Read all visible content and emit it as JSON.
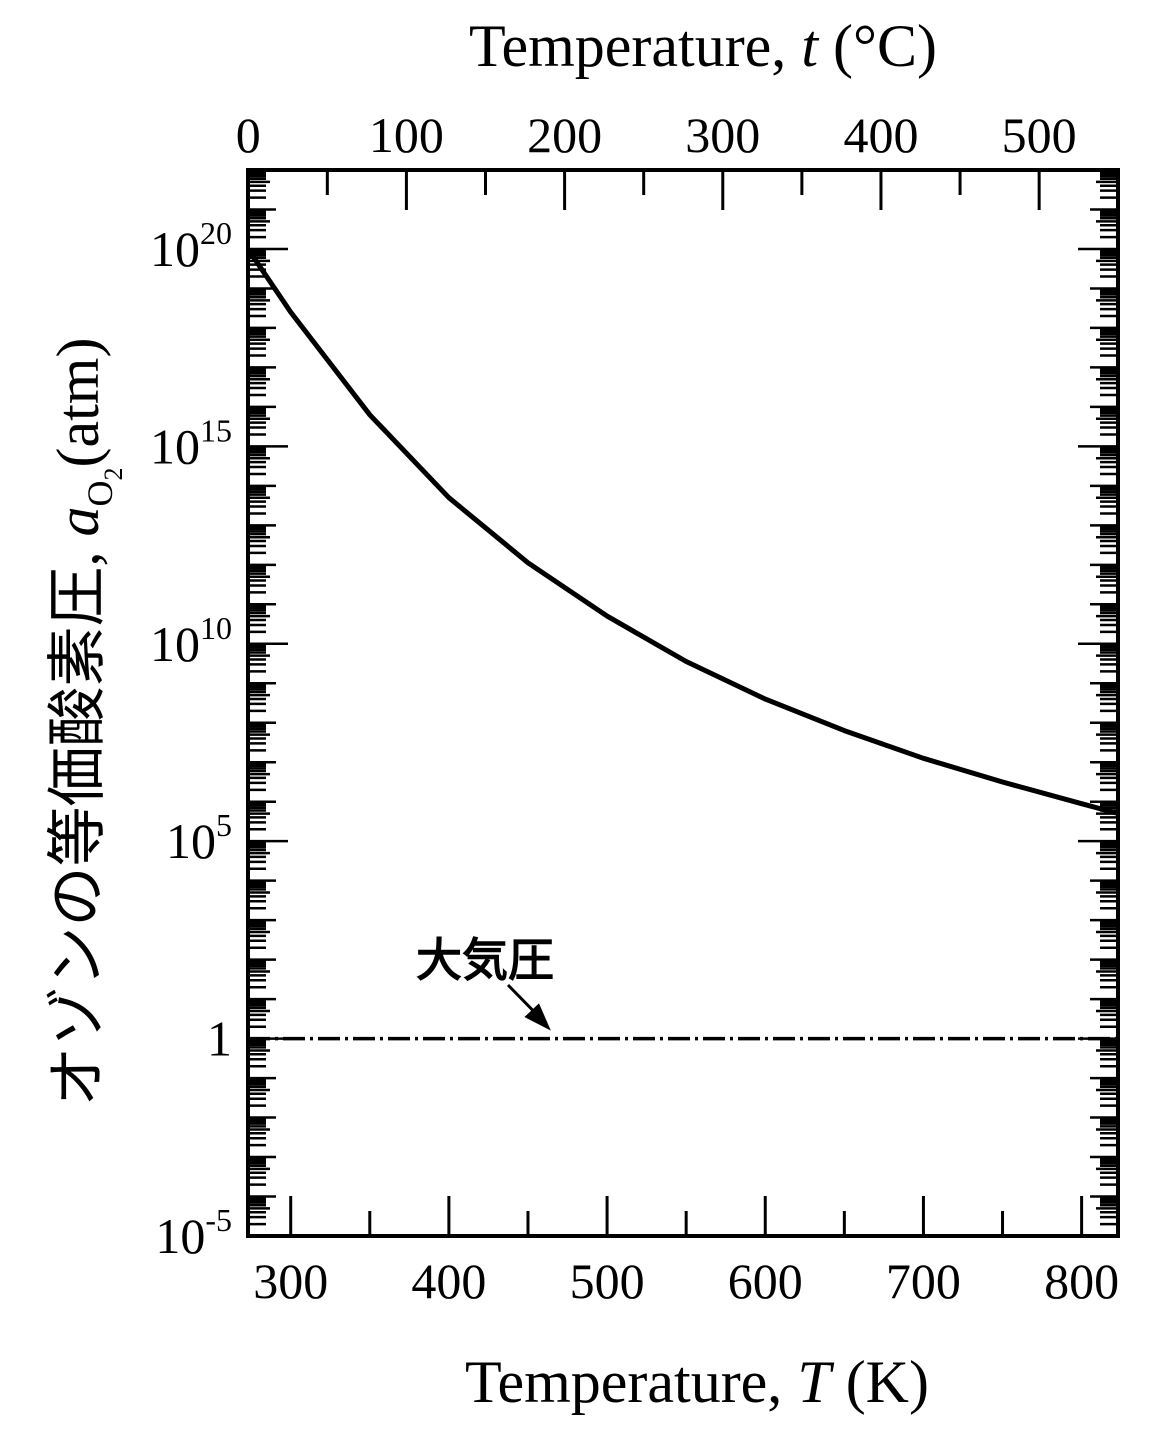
{
  "chart_data": {
    "type": "line",
    "xlabel_bottom": {
      "pre": "Temperature, ",
      "var": "T",
      "post": " (K)"
    },
    "xlabel_top": {
      "pre": "Temperature, ",
      "var": "t",
      "post": " (°C)"
    },
    "ylabel": {
      "pre": "オゾンの等価酸素圧, ",
      "var": "a",
      "sub": "O",
      "subsub": "2",
      "post": "(atm)"
    },
    "x_unit": "K",
    "xlim": [
      273,
      823
    ],
    "x_ticks": [
      300,
      400,
      500,
      600,
      700,
      800
    ],
    "x_tick_labels": [
      "300",
      "400",
      "500",
      "600",
      "700",
      "800"
    ],
    "top_axis_unit": "°C",
    "top_ticks": [
      0,
      100,
      200,
      300,
      400,
      500
    ],
    "top_tick_labels": [
      "0",
      "100",
      "200",
      "300",
      "400",
      "500"
    ],
    "y_scale": "log",
    "ylim_exponent": [
      -5,
      22
    ],
    "y_ticks": [
      {
        "value": "1e-5",
        "base": "10",
        "exp": "-5"
      },
      {
        "value": "1",
        "base": "1",
        "exp": ""
      },
      {
        "value": "1e5",
        "base": "10",
        "exp": "5"
      },
      {
        "value": "1e10",
        "base": "10",
        "exp": "10"
      },
      {
        "value": "1e15",
        "base": "10",
        "exp": "15"
      },
      {
        "value": "1e20",
        "base": "10",
        "exp": "20"
      }
    ],
    "series": [
      {
        "style": "solid",
        "color": "#000000",
        "x": [
          273,
          300,
          350,
          400,
          450,
          500,
          550,
          600,
          650,
          700,
          750,
          800,
          823
        ],
        "log10_y": [
          20.0,
          18.4,
          15.8,
          13.7,
          12.05,
          10.7,
          9.55,
          8.6,
          7.8,
          7.1,
          6.5,
          5.95,
          5.7
        ]
      },
      {
        "style": "dash-dot",
        "color": "#000000",
        "x": [
          273,
          823
        ],
        "log10_y": [
          0,
          0
        ]
      }
    ],
    "annotations": [
      {
        "text": "大気圧",
        "target_x": 467,
        "target_log10_y": 0
      }
    ]
  }
}
